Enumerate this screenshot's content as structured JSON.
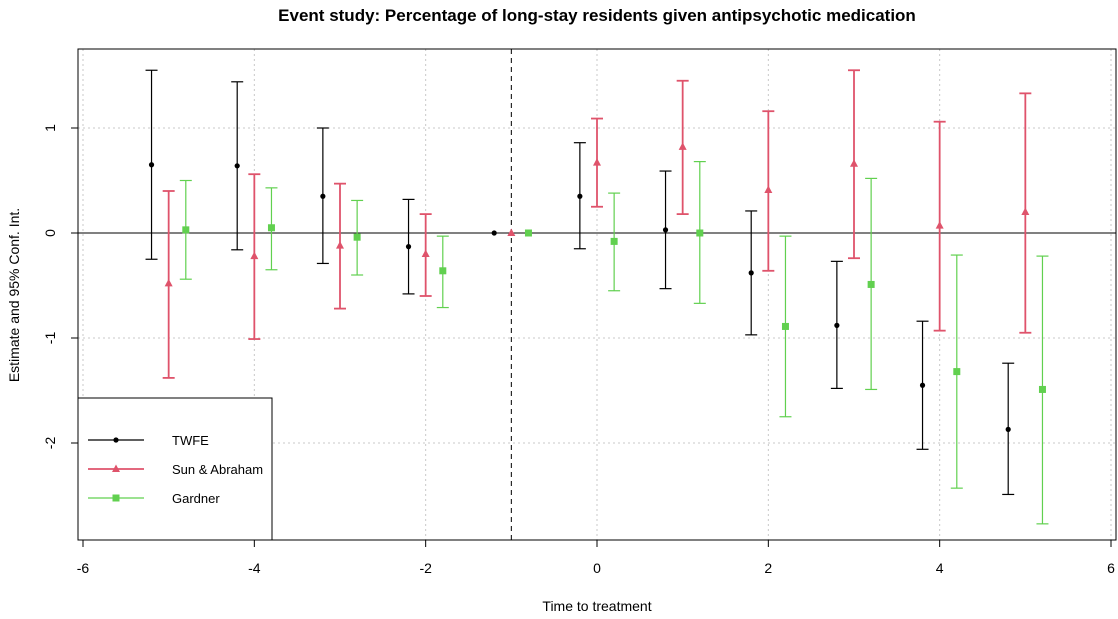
{
  "chart_data": {
    "type": "scatter",
    "title": "Event study: Percentage of long-stay residents given antipsychotic medication",
    "xlabel": "Time to treatment",
    "ylabel": "Estimate and 95% Conf. Int.",
    "xlim": [
      -6,
      6
    ],
    "ylim": [
      -2.9,
      1.72
    ],
    "xticks": [
      -6,
      -4,
      -2,
      0,
      2,
      4,
      6
    ],
    "yticks": [
      1,
      0,
      -1,
      -2
    ],
    "xtick_labels": [
      "-6",
      "-4",
      "-2",
      "0",
      "2",
      "4",
      "6"
    ],
    "ytick_labels": [
      "1",
      "0",
      "-1",
      "-2"
    ],
    "grid": true,
    "reference_hline": 0,
    "reference_vline": -1,
    "legend_position": "bottom-left",
    "series": [
      {
        "name": "TWFE",
        "color": "#000000",
        "marker": "circle",
        "x": [
          -5.2,
          -4.2,
          -3.2,
          -2.2,
          -1.2,
          -0.2,
          0.8,
          1.8,
          2.8,
          3.8,
          4.8
        ],
        "y": [
          0.65,
          0.64,
          0.35,
          -0.13,
          0.0,
          0.35,
          0.03,
          -0.38,
          -0.88,
          -1.45,
          -1.87
        ],
        "lower": [
          -0.25,
          -0.16,
          -0.29,
          -0.58,
          0.0,
          -0.15,
          -0.53,
          -0.97,
          -1.48,
          -2.06,
          -2.49
        ],
        "upper": [
          1.55,
          1.44,
          1.0,
          0.32,
          0.0,
          0.86,
          0.59,
          0.21,
          -0.27,
          -0.84,
          -1.24
        ]
      },
      {
        "name": "Sun & Abraham",
        "color": "#DF536B",
        "marker": "triangle",
        "x": [
          -5.0,
          -4.0,
          -3.0,
          -2.0,
          -1.0,
          0.0,
          1.0,
          2.0,
          3.0,
          4.0,
          5.0
        ],
        "y": [
          -0.48,
          -0.22,
          -0.12,
          -0.2,
          0.0,
          0.67,
          0.82,
          0.41,
          0.66,
          0.07,
          0.2
        ],
        "lower": [
          -1.38,
          -1.01,
          -0.72,
          -0.6,
          0.0,
          0.25,
          0.18,
          -0.36,
          -0.24,
          -0.93,
          -0.95
        ],
        "upper": [
          0.4,
          0.56,
          0.47,
          0.18,
          0.0,
          1.09,
          1.45,
          1.16,
          1.55,
          1.06,
          1.33
        ]
      },
      {
        "name": "Gardner",
        "color": "#61D04F",
        "marker": "square",
        "x": [
          -4.8,
          -3.8,
          -2.8,
          -1.8,
          -0.8,
          0.2,
          1.2,
          2.2,
          3.2,
          4.2,
          5.2
        ],
        "y": [
          0.03,
          0.05,
          -0.04,
          -0.36,
          0.0,
          -0.08,
          0.0,
          -0.89,
          -0.49,
          -1.32,
          -1.49
        ],
        "lower": [
          -0.44,
          -0.35,
          -0.4,
          -0.71,
          0.0,
          -0.55,
          -0.67,
          -1.75,
          -1.49,
          -2.43,
          -2.77
        ],
        "upper": [
          0.5,
          0.43,
          0.31,
          -0.03,
          0.0,
          0.38,
          0.68,
          -0.03,
          0.52,
          -0.21,
          -0.22
        ]
      }
    ]
  }
}
